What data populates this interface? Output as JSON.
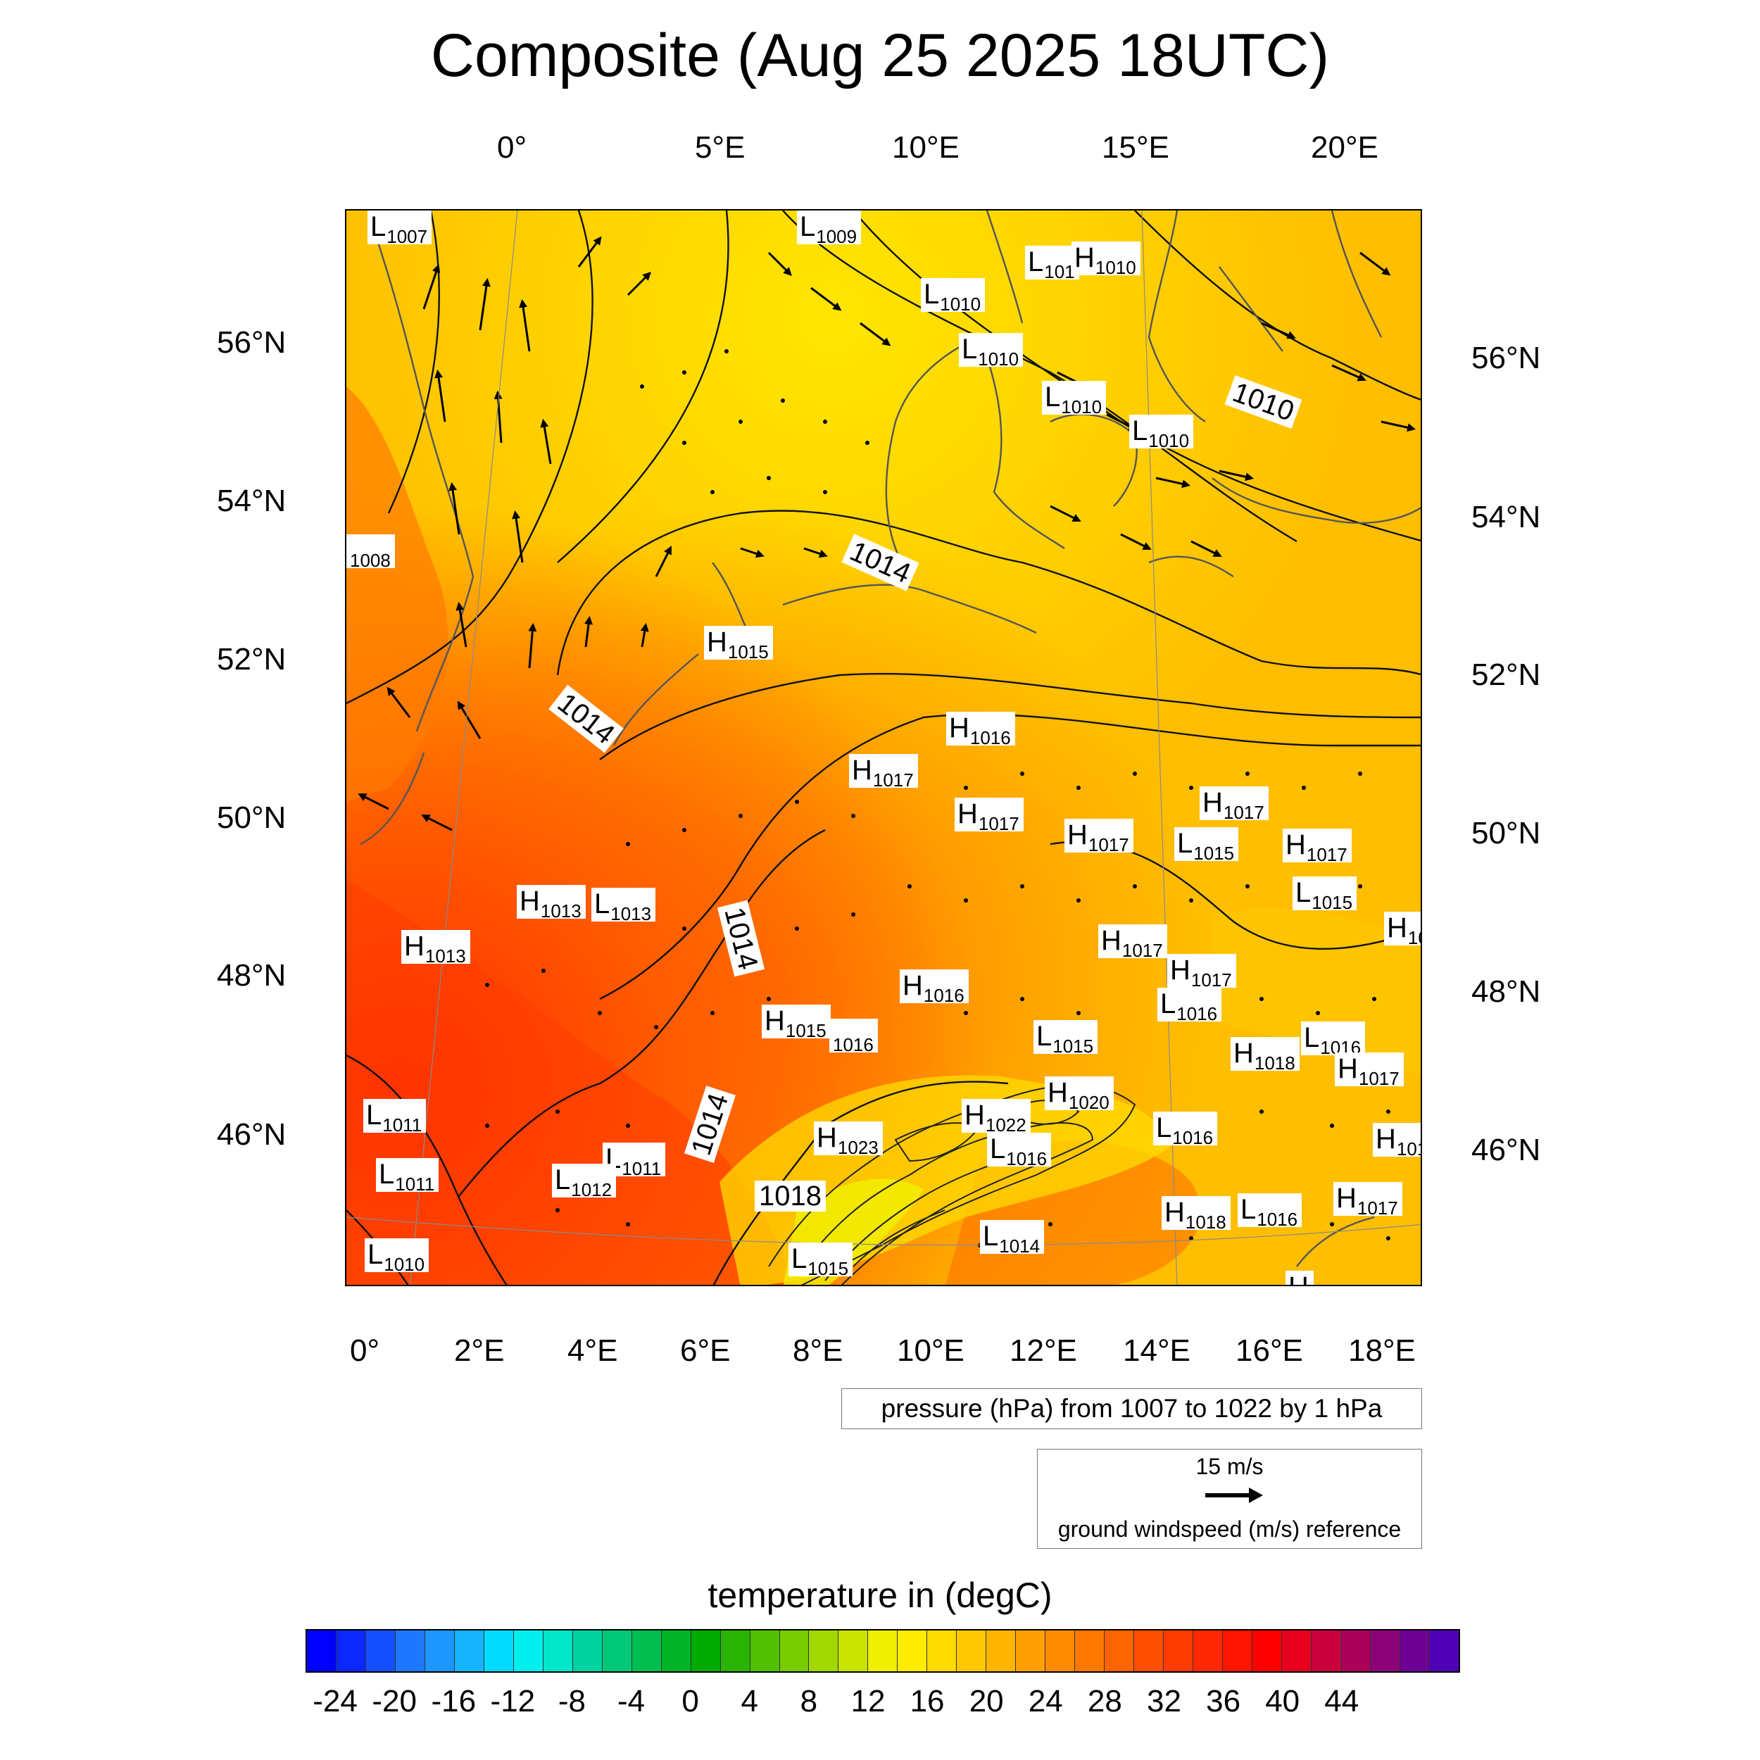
{
  "title": "Composite (Aug 25 2025 18UTC)",
  "top_lon_labels": [
    "0°",
    "5°E",
    "10°E",
    "15°E",
    "20°E"
  ],
  "bottom_lon_labels": [
    "0°",
    "2°E",
    "4°E",
    "6°E",
    "8°E",
    "10°E",
    "12°E",
    "14°E",
    "16°E",
    "18°E"
  ],
  "left_lat_labels": [
    "56°N",
    "54°N",
    "52°N",
    "50°N",
    "48°N",
    "46°N"
  ],
  "right_lat_labels": [
    "56°N",
    "54°N",
    "52°N",
    "50°N",
    "48°N",
    "46°N"
  ],
  "pressure_centers": [
    {
      "t": "L",
      "v": "1007"
    },
    {
      "t": "L",
      "v": "1009"
    },
    {
      "t": "L",
      "v": "101"
    },
    {
      "t": "H",
      "v": "1010"
    },
    {
      "t": "L",
      "v": "1010"
    },
    {
      "t": "L",
      "v": "1010"
    },
    {
      "t": "L",
      "v": "1010"
    },
    {
      "t": "L",
      "v": "1010"
    },
    {
      "t": "",
      "v": "1008"
    },
    {
      "t": "H",
      "v": "1015"
    },
    {
      "t": "H",
      "v": "1016"
    },
    {
      "t": "H",
      "v": "1017"
    },
    {
      "t": "H",
      "v": "1017"
    },
    {
      "t": "H",
      "v": "1017"
    },
    {
      "t": "H",
      "v": "1017"
    },
    {
      "t": "L",
      "v": "1015"
    },
    {
      "t": "H",
      "v": "1017"
    },
    {
      "t": "L",
      "v": "1015"
    },
    {
      "t": "H",
      "v": "10"
    },
    {
      "t": "H",
      "v": "1013"
    },
    {
      "t": "L",
      "v": "1013"
    },
    {
      "t": "H",
      "v": "1013"
    },
    {
      "t": "H",
      "v": "1017"
    },
    {
      "t": "H",
      "v": "1017"
    },
    {
      "t": "L",
      "v": "1016"
    },
    {
      "t": "H",
      "v": "1016"
    },
    {
      "t": "H",
      "v": "1015"
    },
    {
      "t": "",
      "v": "1016"
    },
    {
      "t": "L",
      "v": "1015"
    },
    {
      "t": "L",
      "v": "1016"
    },
    {
      "t": "H",
      "v": "1018"
    },
    {
      "t": "H",
      "v": "1017"
    },
    {
      "t": "H",
      "v": "1020"
    },
    {
      "t": "L",
      "v": "1011"
    },
    {
      "t": "H",
      "v": "1022"
    },
    {
      "t": "H",
      "v": "1023"
    },
    {
      "t": "L",
      "v": "1016"
    },
    {
      "t": "L",
      "v": "1016"
    },
    {
      "t": "H",
      "v": "101"
    },
    {
      "t": "L",
      "v": "1011"
    },
    {
      "t": "L",
      "v": "1011"
    },
    {
      "t": "L",
      "v": "1012"
    },
    {
      "t": "H",
      "v": "1018"
    },
    {
      "t": "L",
      "v": "1016"
    },
    {
      "t": "H",
      "v": "1017"
    },
    {
      "t": "L",
      "v": "1014"
    },
    {
      "t": "L",
      "v": "1010"
    },
    {
      "t": "L",
      "v": "1015"
    },
    {
      "t": "H",
      "v": ""
    }
  ],
  "isobar_labels": [
    "1010",
    "1014",
    "1014",
    "1014",
    "1014",
    "1018"
  ],
  "pressure_legend": "pressure (hPa) from 1007 to 1022 by 1 hPa",
  "wind_reference": {
    "speed": "15 m/s",
    "label": "ground windspeed (m/s) reference"
  },
  "colorbar": {
    "title": "temperature in (degC)",
    "labels": [
      "-24",
      "-20",
      "-16",
      "-12",
      "-8",
      "-4",
      "0",
      "4",
      "8",
      "12",
      "16",
      "20",
      "24",
      "28",
      "32",
      "36",
      "40",
      "44"
    ],
    "colors": [
      "#0000ff",
      "#0a28ff",
      "#1450ff",
      "#1e78ff",
      "#1e96ff",
      "#14b4ff",
      "#00dcff",
      "#00f0f0",
      "#00e6c8",
      "#00d2a0",
      "#00c878",
      "#00be50",
      "#00b428",
      "#00aa00",
      "#28b400",
      "#50c000",
      "#78cc00",
      "#a0d800",
      "#c8e400",
      "#f0f000",
      "#ffeb00",
      "#ffdc00",
      "#ffc800",
      "#ffb400",
      "#ffa000",
      "#ff8c00",
      "#ff7800",
      "#ff6400",
      "#ff5000",
      "#ff3c00",
      "#ff2800",
      "#ff1400",
      "#ff0000",
      "#e6001e",
      "#c8003c",
      "#aa005a",
      "#8c0078",
      "#6e0096",
      "#5000b4"
    ]
  }
}
